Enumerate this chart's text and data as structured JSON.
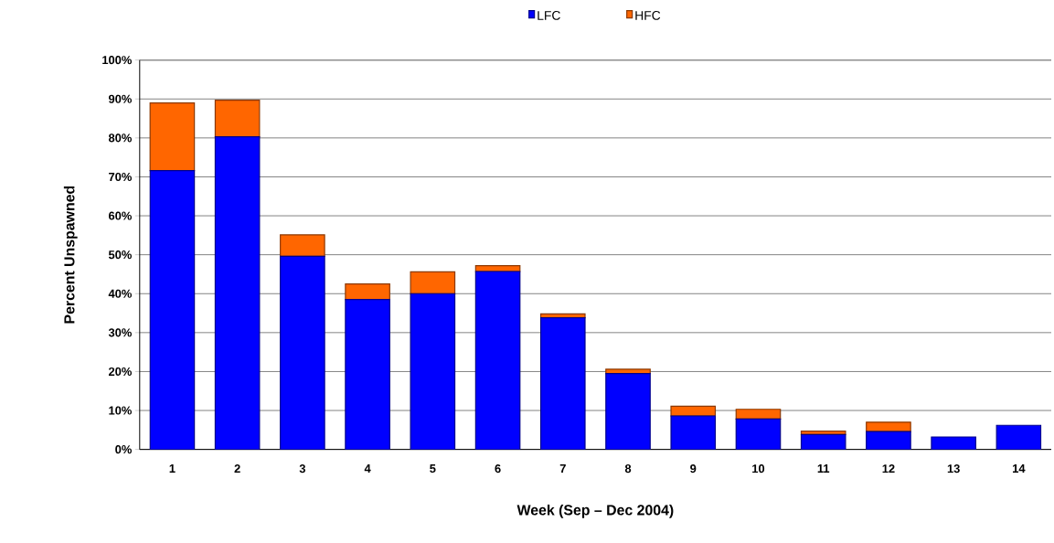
{
  "chart_data": {
    "type": "bar",
    "stacked": true,
    "xlabel": "Week (Sep – Dec 2004)",
    "ylabel": "Percent Unspawned",
    "categories": [
      "1",
      "2",
      "3",
      "4",
      "5",
      "6",
      "7",
      "8",
      "9",
      "10",
      "11",
      "12",
      "13",
      "14"
    ],
    "series": [
      {
        "name": "LFC",
        "color": "#0000ff",
        "values": [
          71.6,
          80.3,
          49.6,
          38.5,
          40.0,
          45.7,
          33.8,
          19.5,
          8.6,
          7.8,
          3.8,
          4.6,
          3.2,
          6.2
        ]
      },
      {
        "name": "HFC",
        "color": "#ff6600",
        "values": [
          17.4,
          9.4,
          5.5,
          4.0,
          5.6,
          1.5,
          1.0,
          1.1,
          2.5,
          2.5,
          0.9,
          2.4,
          0,
          0
        ]
      }
    ],
    "ylim": [
      0,
      100
    ],
    "yticks": [
      {
        "value": 0,
        "label": "0%"
      },
      {
        "value": 10,
        "label": "10%"
      },
      {
        "value": 20,
        "label": "20%"
      },
      {
        "value": 30,
        "label": "30%"
      },
      {
        "value": 40,
        "label": "40%"
      },
      {
        "value": 50,
        "label": "50%"
      },
      {
        "value": 60,
        "label": "60%"
      },
      {
        "value": 70,
        "label": "70%"
      },
      {
        "value": 80,
        "label": "80%"
      },
      {
        "value": 90,
        "label": "90%"
      },
      {
        "value": 100,
        "label": "100%"
      }
    ],
    "grid": "y",
    "legend": "top"
  }
}
